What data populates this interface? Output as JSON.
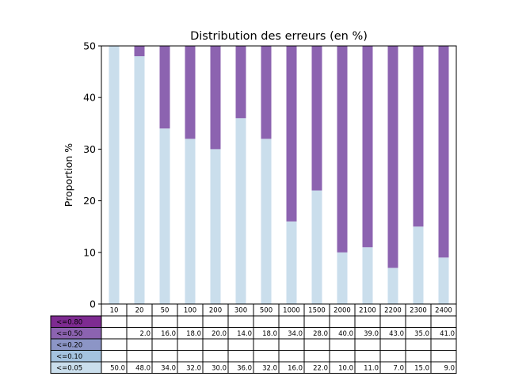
{
  "chart_data": {
    "type": "bar",
    "stacked": true,
    "title": "Distribution des erreurs (en %)",
    "ylabel": "Proportion %",
    "xlabel": "",
    "ylim": [
      0,
      50
    ],
    "yticks": [
      0,
      10,
      20,
      30,
      40,
      50
    ],
    "grid": false,
    "categories": [
      "10",
      "20",
      "50",
      "100",
      "200",
      "300",
      "500",
      "1000",
      "1500",
      "2000",
      "2100",
      "2200",
      "2300",
      "2400"
    ],
    "series": [
      {
        "name": "<=0.05",
        "color": "#cadeec",
        "values": [
          50.0,
          48.0,
          34.0,
          32.0,
          30.0,
          36.0,
          32.0,
          16.0,
          22.0,
          10.0,
          11.0,
          7.0,
          15.0,
          9.0
        ],
        "labels": [
          "50.0",
          "48.0",
          "34.0",
          "32.0",
          "30.0",
          "36.0",
          "32.0",
          "16.0",
          "22.0",
          "10.0",
          "11.0",
          "7.0",
          "15.0",
          "9.0"
        ]
      },
      {
        "name": "<=0.10",
        "color": "#a4c3df",
        "values": [
          0,
          0,
          0,
          0,
          0,
          0,
          0,
          0,
          0,
          0,
          0,
          0,
          0,
          0
        ],
        "labels": [
          "",
          "",
          "",
          "",
          "",
          "",
          "",
          "",
          "",
          "",
          "",
          "",
          "",
          ""
        ]
      },
      {
        "name": "<=0.20",
        "color": "#8c95c6",
        "values": [
          0,
          0,
          0,
          0,
          0,
          0,
          0,
          0,
          0,
          0,
          0,
          0,
          0,
          0
        ],
        "labels": [
          "",
          "",
          "",
          "",
          "",
          "",
          "",
          "",
          "",
          "",
          "",
          "",
          "",
          ""
        ]
      },
      {
        "name": "<=0.50",
        "color": "#8c63b0",
        "values": [
          0,
          2.0,
          16.0,
          18.0,
          20.0,
          14.0,
          18.0,
          34.0,
          28.0,
          40.0,
          39.0,
          43.0,
          35.0,
          41.0
        ],
        "labels": [
          "",
          "2.0",
          "16.0",
          "18.0",
          "20.0",
          "14.0",
          "18.0",
          "34.0",
          "28.0",
          "40.0",
          "39.0",
          "43.0",
          "35.0",
          "41.0"
        ]
      },
      {
        "name": "<=0.80",
        "color": "#7e2b91",
        "values": [
          0,
          0,
          0,
          0,
          0,
          0,
          0,
          0,
          0,
          0,
          0,
          0,
          0,
          0
        ],
        "labels": [
          "",
          "",
          "",
          "",
          "",
          "",
          "",
          "",
          "",
          "",
          "",
          "",
          "",
          ""
        ]
      }
    ],
    "table_row_order": [
      "<=0.80",
      "<=0.50",
      "<=0.20",
      "<=0.10",
      "<=0.05"
    ]
  }
}
